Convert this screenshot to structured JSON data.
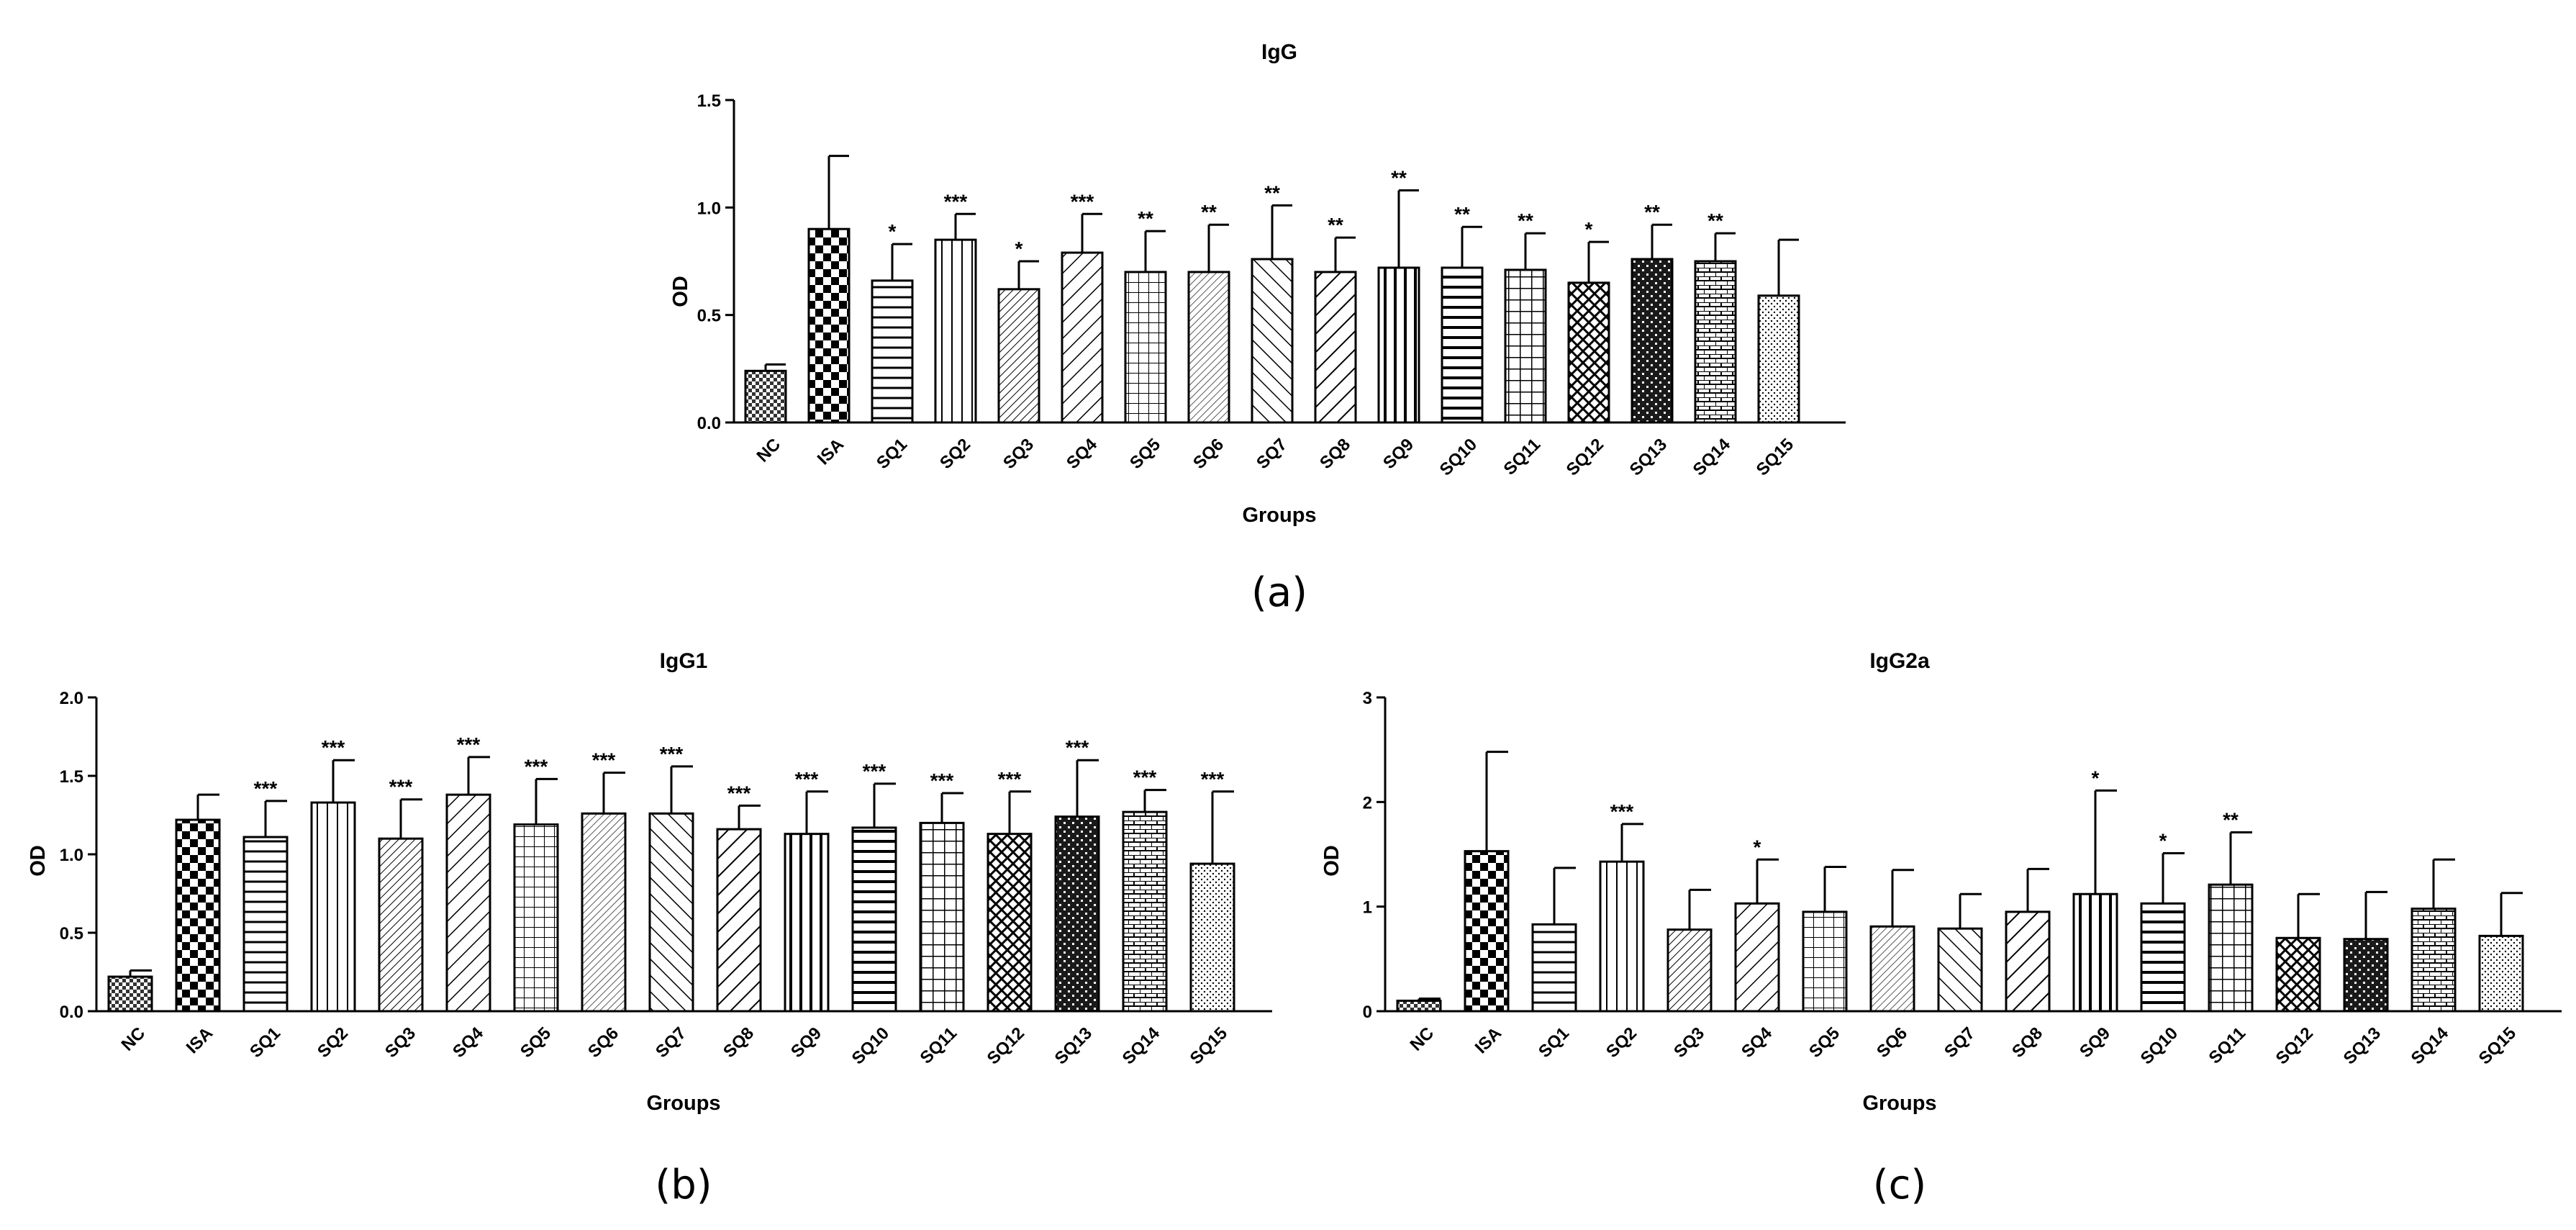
{
  "chart_data": [
    {
      "panel": "(a)",
      "type": "bar",
      "title": "IgG",
      "xlabel": "Groups",
      "ylabel": "OD",
      "ylim": [
        0,
        1.5
      ],
      "yticks": [
        "0.0",
        "0.5",
        "1.0",
        "1.5"
      ],
      "ytick_values": [
        0,
        0.5,
        1.0,
        1.5
      ],
      "categories": [
        "NC",
        "ISA",
        "SQ1",
        "SQ2",
        "SQ3",
        "SQ4",
        "SQ5",
        "SQ6",
        "SQ7",
        "SQ8",
        "SQ9",
        "SQ10",
        "SQ11",
        "SQ12",
        "SQ13",
        "SQ14",
        "SQ15"
      ],
      "values": [
        0.24,
        0.9,
        0.66,
        0.85,
        0.62,
        0.79,
        0.7,
        0.7,
        0.76,
        0.7,
        0.72,
        0.72,
        0.71,
        0.65,
        0.76,
        0.75,
        0.59
      ],
      "errors": [
        0.03,
        0.34,
        0.17,
        0.12,
        0.13,
        0.18,
        0.19,
        0.22,
        0.25,
        0.16,
        0.36,
        0.19,
        0.17,
        0.19,
        0.16,
        0.13,
        0.26
      ],
      "significance": [
        "",
        "",
        "*",
        "***",
        "*",
        "***",
        "**",
        "**",
        "**",
        "**",
        "**",
        "**",
        "**",
        "*",
        "**",
        "**",
        ""
      ]
    },
    {
      "panel": "(b)",
      "type": "bar",
      "title": "IgG1",
      "xlabel": "Groups",
      "ylabel": "OD",
      "ylim": [
        0,
        2.0
      ],
      "yticks": [
        "0.0",
        "0.5",
        "1.0",
        "1.5",
        "2.0"
      ],
      "ytick_values": [
        0,
        0.5,
        1.0,
        1.5,
        2.0
      ],
      "categories": [
        "NC",
        "ISA",
        "SQ1",
        "SQ2",
        "SQ3",
        "SQ4",
        "SQ5",
        "SQ6",
        "SQ7",
        "SQ8",
        "SQ9",
        "SQ10",
        "SQ11",
        "SQ12",
        "SQ13",
        "SQ14",
        "SQ15"
      ],
      "values": [
        0.22,
        1.22,
        1.11,
        1.33,
        1.1,
        1.38,
        1.19,
        1.26,
        1.26,
        1.16,
        1.13,
        1.17,
        1.2,
        1.13,
        1.24,
        1.27,
        0.94
      ],
      "errors": [
        0.04,
        0.16,
        0.23,
        0.27,
        0.25,
        0.24,
        0.29,
        0.26,
        0.3,
        0.15,
        0.27,
        0.28,
        0.19,
        0.27,
        0.36,
        0.14,
        0.46
      ],
      "significance": [
        "",
        "",
        "***",
        "***",
        "***",
        "***",
        "***",
        "***",
        "***",
        "***",
        "***",
        "***",
        "***",
        "***",
        "***",
        "***",
        "***"
      ]
    },
    {
      "panel": "(c)",
      "type": "bar",
      "title": "IgG2a",
      "xlabel": "Groups",
      "ylabel": "OD",
      "ylim": [
        0,
        3
      ],
      "yticks": [
        "0",
        "1",
        "2",
        "3"
      ],
      "ytick_values": [
        0,
        1,
        2,
        3
      ],
      "categories": [
        "NC",
        "ISA",
        "SQ1",
        "SQ2",
        "SQ3",
        "SQ4",
        "SQ5",
        "SQ6",
        "SQ7",
        "SQ8",
        "SQ9",
        "SQ10",
        "SQ11",
        "SQ12",
        "SQ13",
        "SQ14",
        "SQ15"
      ],
      "values": [
        0.1,
        1.53,
        0.83,
        1.43,
        0.78,
        1.03,
        0.95,
        0.81,
        0.79,
        0.95,
        1.12,
        1.03,
        1.21,
        0.7,
        0.69,
        0.98,
        0.72
      ],
      "errors": [
        0.02,
        0.95,
        0.54,
        0.36,
        0.38,
        0.42,
        0.43,
        0.54,
        0.33,
        0.41,
        0.99,
        0.48,
        0.5,
        0.42,
        0.45,
        0.47,
        0.41
      ],
      "significance": [
        "",
        "",
        "",
        "***",
        "",
        "*",
        "",
        "",
        "",
        "",
        "*",
        "*",
        "**",
        "",
        "",
        "",
        ""
      ]
    }
  ]
}
